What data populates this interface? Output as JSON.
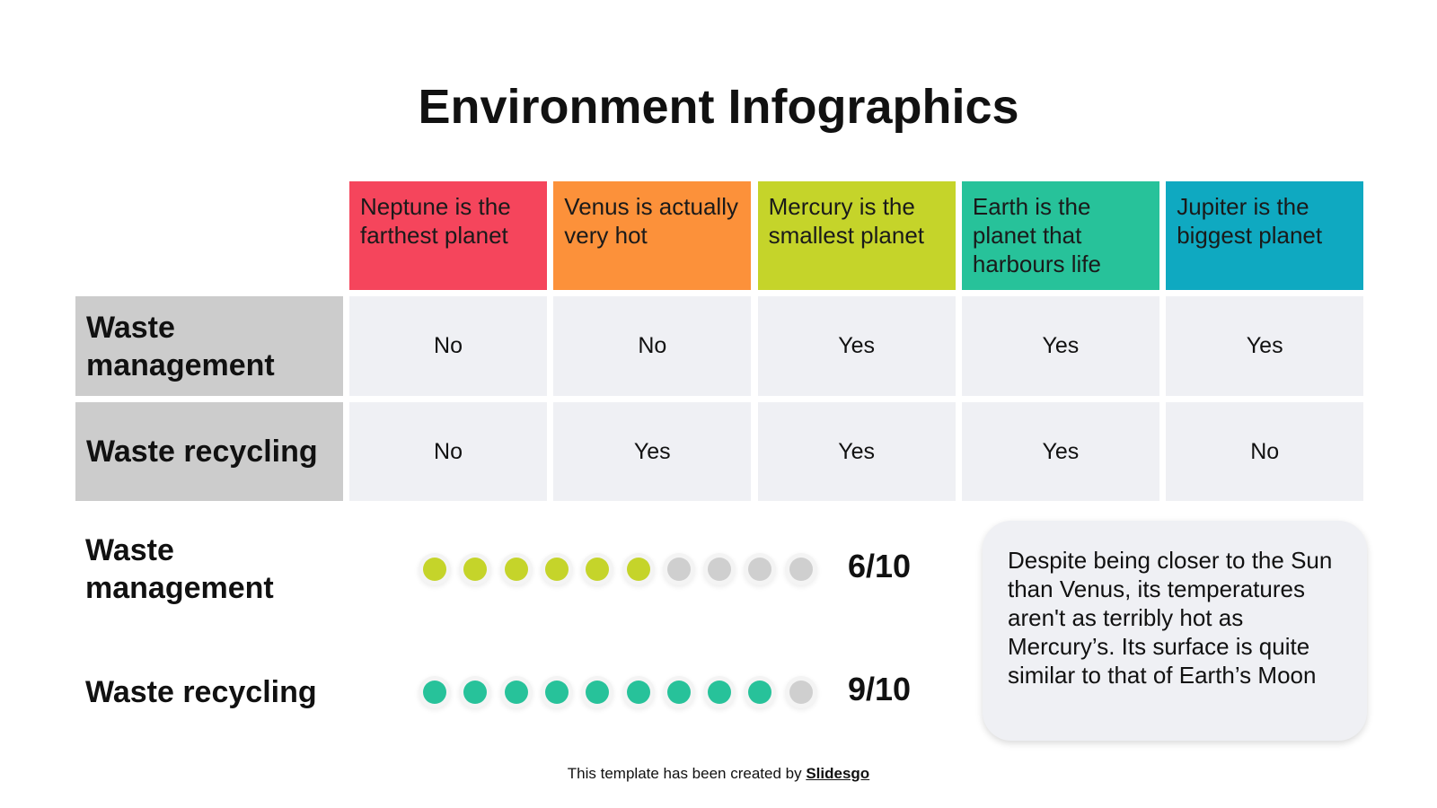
{
  "title": "Environment Infographics",
  "table": {
    "columns": [
      {
        "label": "Neptune is the farthest planet",
        "color": "#f5455c"
      },
      {
        "label": "Venus is actually very hot",
        "color": "#fc913a"
      },
      {
        "label": "Mercury is the smallest planet",
        "color": "#c5d42a"
      },
      {
        "label": "Earth is the planet that harbours life",
        "color": "#27c29a"
      },
      {
        "label": "Jupiter is the biggest planet",
        "color": "#0fa9c1"
      }
    ],
    "rows": [
      {
        "label": "Waste management",
        "cells": [
          "No",
          "No",
          "Yes",
          "Yes",
          "Yes"
        ]
      },
      {
        "label": "Waste recycling",
        "cells": [
          "No",
          "Yes",
          "Yes",
          "Yes",
          "No"
        ]
      }
    ]
  },
  "ratings": [
    {
      "label": "Waste management",
      "value": 6,
      "max": 10,
      "score": "6/10",
      "color": "#c5d42a"
    },
    {
      "label": "Waste recycling",
      "value": 9,
      "max": 10,
      "score": "9/10",
      "color": "#27c29a"
    }
  ],
  "dot_off_color": "#cfcfcf",
  "note": "Despite being closer to the Sun than Venus, its temperatures aren't as terribly hot as Mercury’s. Its surface is quite similar to that of Earth’s Moon",
  "footer": {
    "text": "This template has been created by",
    "link": "Slidesgo"
  }
}
